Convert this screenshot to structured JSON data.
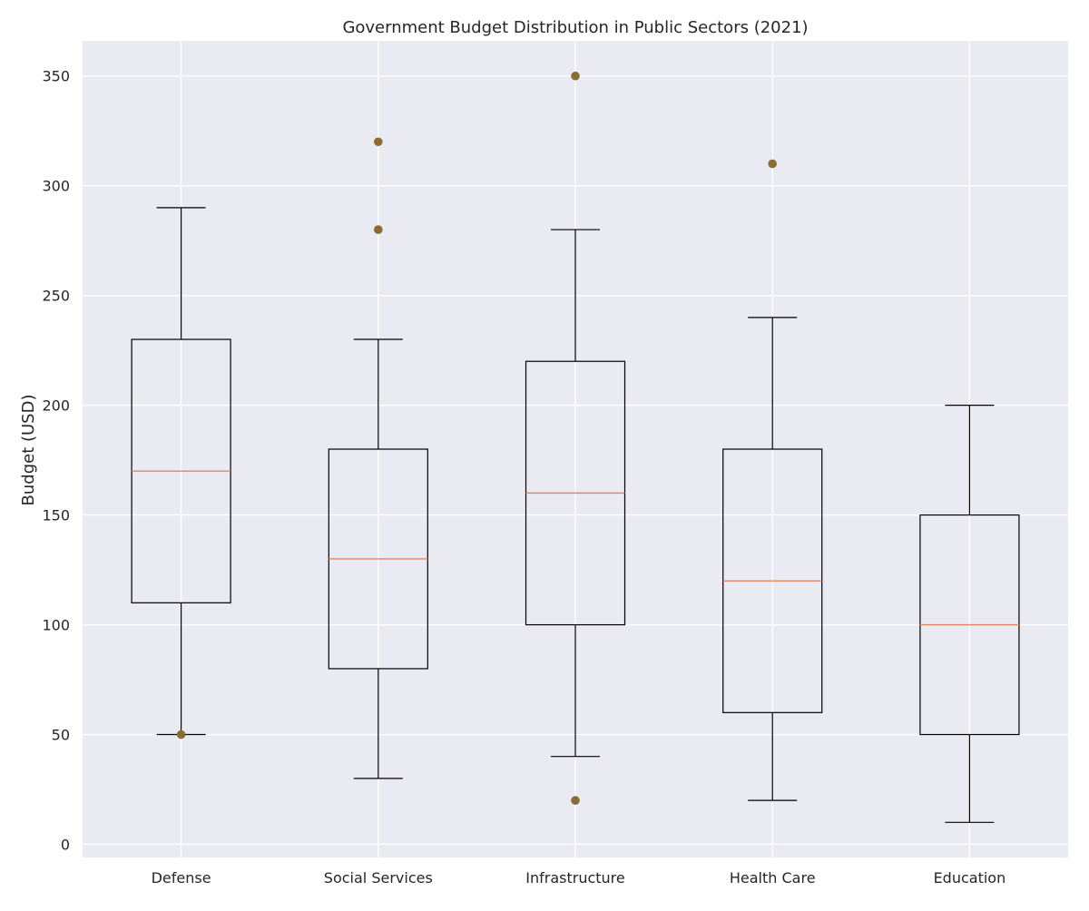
{
  "chart_data": {
    "type": "boxplot",
    "title": "Government Budget Distribution in Public Sectors (2021)",
    "xlabel": "",
    "ylabel": "Budget (USD)",
    "ylim": [
      -6,
      366
    ],
    "yticks": [
      0,
      50,
      100,
      150,
      200,
      250,
      300,
      350
    ],
    "grid": true,
    "colors": {
      "background": "#eaeaf2",
      "grid": "#ffffff",
      "box": "#000000",
      "median": "#e6845e",
      "outlier": "#8c6d31"
    },
    "categories": [
      "Defense",
      "Social Services",
      "Infrastructure",
      "Health Care",
      "Education"
    ],
    "boxes": [
      {
        "label": "Defense",
        "whisker_low": 50,
        "q1": 110,
        "median": 170,
        "q3": 230,
        "whisker_high": 290,
        "outliers": [
          50
        ]
      },
      {
        "label": "Social Services",
        "whisker_low": 30,
        "q1": 80,
        "median": 130,
        "q3": 180,
        "whisker_high": 230,
        "outliers": [
          280,
          320
        ]
      },
      {
        "label": "Infrastructure",
        "whisker_low": 40,
        "q1": 100,
        "median": 160,
        "q3": 220,
        "whisker_high": 280,
        "outliers": [
          20,
          350
        ]
      },
      {
        "label": "Health Care",
        "whisker_low": 20,
        "q1": 60,
        "median": 120,
        "q3": 180,
        "whisker_high": 240,
        "outliers": [
          310
        ]
      },
      {
        "label": "Education",
        "whisker_low": 10,
        "q1": 50,
        "median": 100,
        "q3": 150,
        "whisker_high": 200,
        "outliers": []
      }
    ]
  }
}
